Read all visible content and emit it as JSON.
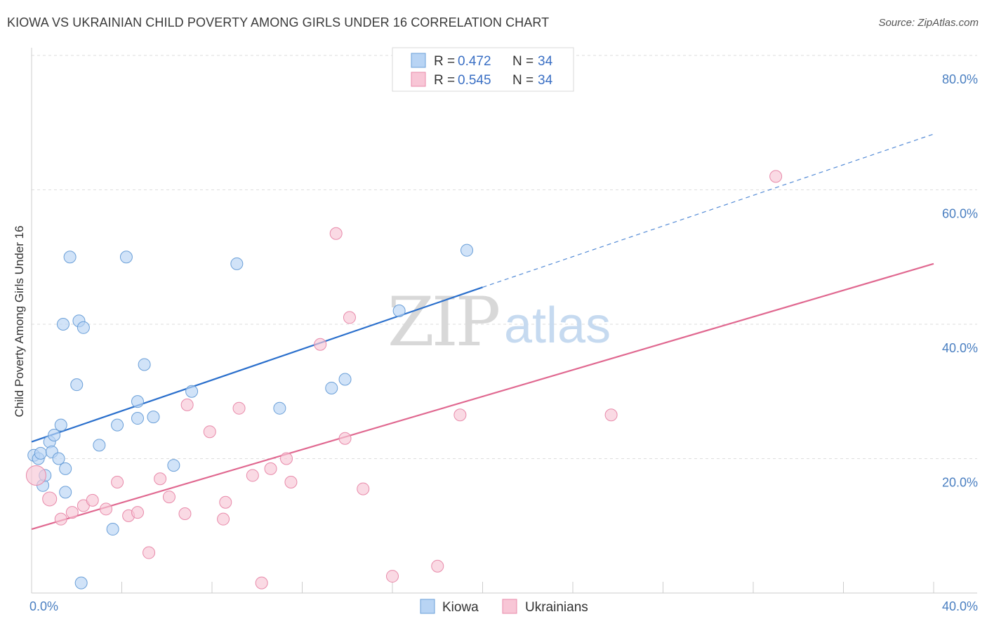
{
  "header": {
    "title": "KIOWA VS UKRAINIAN CHILD POVERTY AMONG GIRLS UNDER 16 CORRELATION CHART",
    "source": "Source: ZipAtlas.com"
  },
  "watermark": {
    "zip": "ZIP",
    "atlas": "atlas"
  },
  "legend": {
    "kiowa": {
      "r_label": "R =",
      "r_value": "0.472",
      "n_label": "N =",
      "n_value": "34"
    },
    "ukrainians": {
      "r_label": "R =",
      "r_value": "0.545",
      "n_label": "N =",
      "n_value": "34"
    }
  },
  "colors": {
    "kiowa_fill": "#b8d4f4",
    "kiowa_stroke": "#6a9fd8",
    "kiowa_line": "#2a6fcc",
    "ukrainians_fill": "#f8c6d6",
    "ukrainians_stroke": "#e88aaa",
    "ukrainians_line": "#e06890",
    "grid": "#dddddd",
    "tick_text": "#4a7fc1"
  },
  "chart_data": {
    "type": "scatter",
    "title": "KIOWA VS UKRAINIAN CHILD POVERTY AMONG GIRLS UNDER 16 CORRELATION CHART",
    "xlabel": "",
    "ylabel": "Child Poverty Among Girls Under 16",
    "xlim": [
      0,
      40
    ],
    "ylim": [
      0,
      80
    ],
    "x_tick_labels": [
      "0.0%",
      "40.0%"
    ],
    "y_ticks": [
      20,
      40,
      60,
      80
    ],
    "y_tick_labels": [
      "20.0%",
      "40.0%",
      "60.0%",
      "80.0%"
    ],
    "grid": "horizontal dashed",
    "legend_placement": "top-center",
    "series": [
      {
        "name": "Kiowa",
        "r": 0.472,
        "n": 34,
        "points": [
          [
            0.1,
            20.5
          ],
          [
            0.3,
            20.0
          ],
          [
            0.4,
            20.8
          ],
          [
            0.5,
            16.0
          ],
          [
            0.6,
            17.5
          ],
          [
            0.8,
            22.5
          ],
          [
            0.9,
            21.0
          ],
          [
            1.0,
            23.5
          ],
          [
            1.2,
            20.0
          ],
          [
            1.3,
            25.0
          ],
          [
            1.4,
            40.0
          ],
          [
            1.5,
            18.5
          ],
          [
            1.5,
            15.0
          ],
          [
            1.7,
            50.0
          ],
          [
            2.0,
            31.0
          ],
          [
            2.1,
            40.5
          ],
          [
            2.2,
            1.5
          ],
          [
            2.3,
            39.5
          ],
          [
            3.0,
            22.0
          ],
          [
            3.6,
            9.5
          ],
          [
            3.8,
            25.0
          ],
          [
            4.2,
            50.0
          ],
          [
            4.7,
            28.5
          ],
          [
            4.7,
            26.0
          ],
          [
            5.0,
            34.0
          ],
          [
            5.4,
            26.2
          ],
          [
            6.3,
            19.0
          ],
          [
            7.1,
            30.0
          ],
          [
            9.1,
            49.0
          ],
          [
            11.0,
            27.5
          ],
          [
            13.3,
            30.5
          ],
          [
            13.9,
            31.8
          ],
          [
            16.3,
            42.0
          ],
          [
            19.3,
            51.0
          ]
        ],
        "trend": {
          "x": [
            0,
            20
          ],
          "y": [
            22.5,
            45.5
          ],
          "dashed_extension": {
            "x": [
              20,
              40
            ],
            "y": [
              45.5,
              68.3
            ]
          }
        }
      },
      {
        "name": "Ukrainians",
        "r": 0.545,
        "n": 34,
        "points": [
          [
            0.2,
            17.5
          ],
          [
            0.8,
            14.0
          ],
          [
            1.3,
            11.0
          ],
          [
            1.8,
            12.0
          ],
          [
            2.3,
            13.0
          ],
          [
            2.7,
            13.8
          ],
          [
            3.3,
            12.5
          ],
          [
            3.8,
            16.5
          ],
          [
            4.3,
            11.5
          ],
          [
            4.7,
            12.0
          ],
          [
            5.2,
            6.0
          ],
          [
            5.7,
            17.0
          ],
          [
            6.1,
            14.3
          ],
          [
            6.8,
            11.8
          ],
          [
            6.9,
            28.0
          ],
          [
            7.9,
            24.0
          ],
          [
            8.5,
            11.0
          ],
          [
            8.6,
            13.5
          ],
          [
            9.2,
            27.5
          ],
          [
            9.8,
            17.5
          ],
          [
            10.2,
            1.5
          ],
          [
            10.6,
            18.5
          ],
          [
            11.3,
            20.0
          ],
          [
            11.5,
            16.5
          ],
          [
            12.8,
            37.0
          ],
          [
            13.5,
            53.5
          ],
          [
            13.9,
            23.0
          ],
          [
            14.1,
            41.0
          ],
          [
            14.7,
            15.5
          ],
          [
            16.0,
            2.5
          ],
          [
            18.0,
            4.0
          ],
          [
            19.0,
            26.5
          ],
          [
            25.7,
            26.5
          ],
          [
            33.0,
            62.0
          ]
        ],
        "trend": {
          "x": [
            0,
            40
          ],
          "y": [
            9.5,
            49.0
          ]
        }
      }
    ],
    "bottom_legend": [
      "Kiowa",
      "Ukrainians"
    ]
  }
}
